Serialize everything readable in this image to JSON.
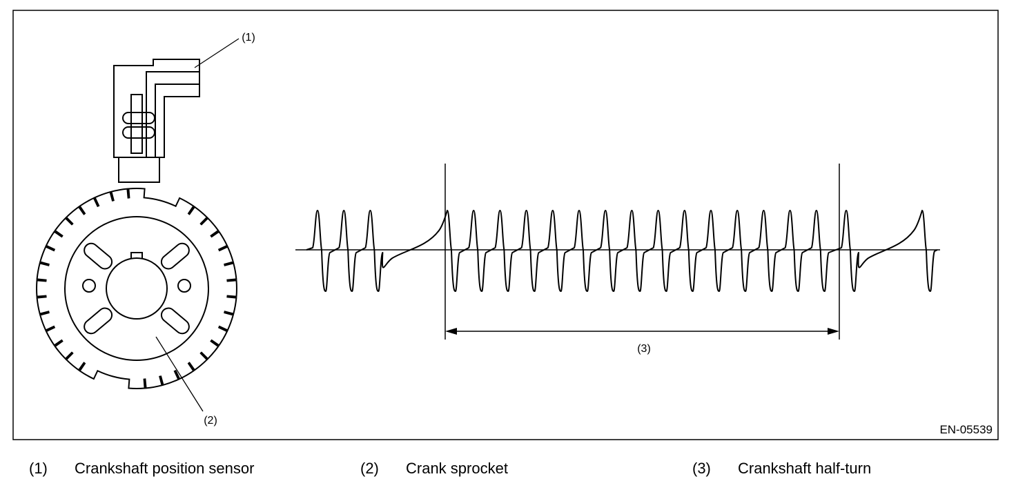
{
  "figure": {
    "code": "EN-05539",
    "callouts": {
      "sensor": "(1)",
      "sprocket": "(2)",
      "half_turn": "(3)"
    }
  },
  "waveform": {
    "pulses_before_gap_start": 3,
    "pulses_between_gaps": 15,
    "pulses_after_second_gap": 1
  },
  "legend": [
    {
      "num": "(1)",
      "text": "Crankshaft position sensor"
    },
    {
      "num": "(2)",
      "text": "Crank sprocket"
    },
    {
      "num": "(3)",
      "text": "Crankshaft half-turn"
    }
  ]
}
